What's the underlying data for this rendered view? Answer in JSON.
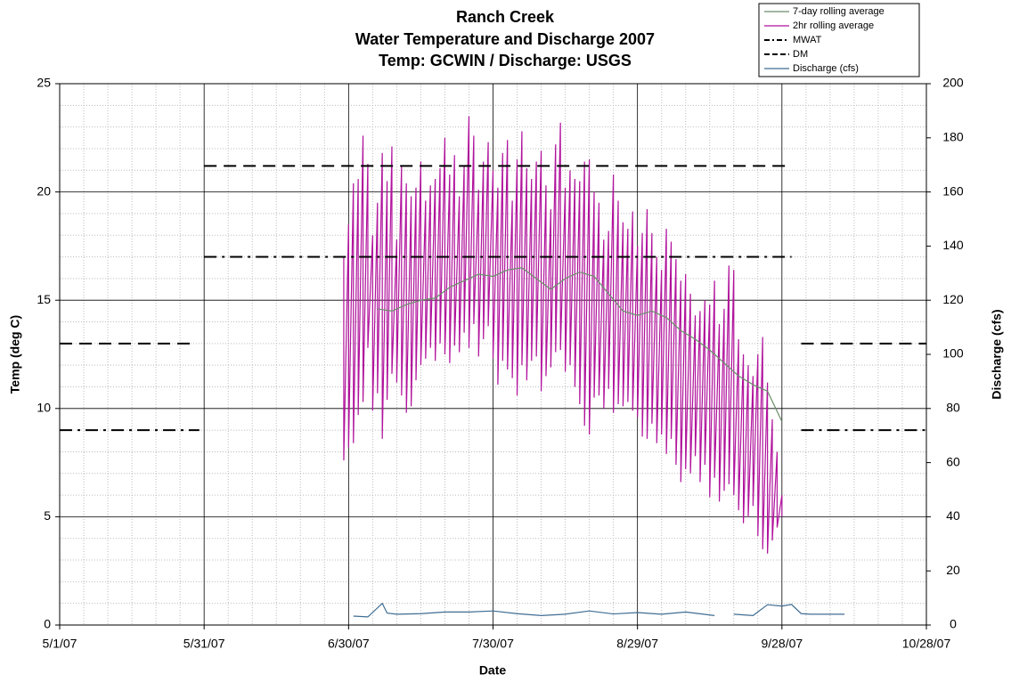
{
  "chart_data": {
    "type": "line",
    "title": [
      "Ranch Creek",
      "Water Temperature and Discharge 2007",
      "Temp: GCWIN / Discharge: USGS"
    ],
    "x_label": "Date",
    "y_label": "Temp (deg C)",
    "y2_label": "Discharge (cfs)",
    "xlim": [
      "5/1/07",
      "10/28/07"
    ],
    "xticks": [
      "5/1/07",
      "5/31/07",
      "6/30/07",
      "7/30/07",
      "8/29/07",
      "9/28/07",
      "10/28/07"
    ],
    "ylim": [
      0,
      25
    ],
    "yticks": [
      0,
      5,
      10,
      15,
      20,
      25
    ],
    "y2lim": [
      0,
      200
    ],
    "y2ticks": [
      0,
      20,
      40,
      60,
      80,
      100,
      120,
      140,
      160,
      180,
      200
    ],
    "grid": true,
    "legend": "top-right",
    "series": [
      {
        "name": "7-day rolling average",
        "color": "#6b8e6b",
        "dash": "solid",
        "x": [
          "7/6/07",
          "7/9/07",
          "7/12/07",
          "7/15/07",
          "7/18/07",
          "7/21/07",
          "7/24/07",
          "7/27/07",
          "7/30/07",
          "8/2/07",
          "8/5/07",
          "8/8/07",
          "8/11/07",
          "8/14/07",
          "8/17/07",
          "8/20/07",
          "8/23/07",
          "8/26/07",
          "8/29/07",
          "9/1/07",
          "9/4/07",
          "9/7/07",
          "9/10/07",
          "9/13/07",
          "9/16/07",
          "9/19/07",
          "9/22/07",
          "9/25/07",
          "9/28/07"
        ],
        "values": [
          14.6,
          14.5,
          14.8,
          15.0,
          15.1,
          15.6,
          15.9,
          16.2,
          16.1,
          16.4,
          16.5,
          16.0,
          15.5,
          16.0,
          16.3,
          16.1,
          15.3,
          14.5,
          14.3,
          14.5,
          14.2,
          13.6,
          13.2,
          12.7,
          12.1,
          11.5,
          11.1,
          10.8,
          9.4
        ]
      },
      {
        "name": "2hr rolling average",
        "color": "#b0129c",
        "dash": "solid",
        "x": [
          "6/29/07",
          "6/30/07",
          "7/1/07",
          "7/2/07",
          "7/3/07",
          "7/4/07",
          "7/5/07",
          "7/6/07",
          "7/7/07",
          "7/8/07",
          "7/9/07",
          "7/10/07",
          "7/11/07",
          "7/12/07",
          "7/13/07",
          "7/14/07",
          "7/15/07",
          "7/16/07",
          "7/17/07",
          "7/18/07",
          "7/19/07",
          "7/20/07",
          "7/21/07",
          "7/22/07",
          "7/23/07",
          "7/24/07",
          "7/25/07",
          "7/26/07",
          "7/27/07",
          "7/28/07",
          "7/29/07",
          "7/30/07",
          "7/31/07",
          "8/1/07",
          "8/2/07",
          "8/3/07",
          "8/4/07",
          "8/5/07",
          "8/6/07",
          "8/7/07",
          "8/8/07",
          "8/9/07",
          "8/10/07",
          "8/11/07",
          "8/12/07",
          "8/13/07",
          "8/14/07",
          "8/15/07",
          "8/16/07",
          "8/17/07",
          "8/18/07",
          "8/19/07",
          "8/20/07",
          "8/21/07",
          "8/22/07",
          "8/23/07",
          "8/24/07",
          "8/25/07",
          "8/26/07",
          "8/27/07",
          "8/28/07",
          "8/29/07",
          "8/30/07",
          "8/31/07",
          "9/1/07",
          "9/2/07",
          "9/3/07",
          "9/4/07",
          "9/5/07",
          "9/6/07",
          "9/7/07",
          "9/8/07",
          "9/9/07",
          "9/10/07",
          "9/11/07",
          "9/12/07",
          "9/13/07",
          "9/14/07",
          "9/15/07",
          "9/16/07",
          "9/17/07",
          "9/18/07",
          "9/19/07",
          "9/20/07",
          "9/21/07",
          "9/22/07",
          "9/23/07",
          "9/24/07",
          "9/25/07",
          "9/26/07",
          "9/27/07",
          "9/28/07"
        ],
        "max": [
          17,
          18.5,
          20.4,
          20.6,
          22.6,
          21.3,
          18,
          19.5,
          21.8,
          20.5,
          22.1,
          17.8,
          21.2,
          20.4,
          19.8,
          20.2,
          21.4,
          19.6,
          20.3,
          20.6,
          21.1,
          22.5,
          20.8,
          21.7,
          19.8,
          21.2,
          23.5,
          22.6,
          20.1,
          21.4,
          22.3,
          21.0,
          20.2,
          21.8,
          22.4,
          19.6,
          21.5,
          22.8,
          21.1,
          20.6,
          21.4,
          21.9,
          20.3,
          19.2,
          22.2,
          23.2,
          20.2,
          21.0,
          20.6,
          20.5,
          21.4,
          21.5,
          20.0,
          19.5,
          17.8,
          18.2,
          20.8,
          19.6,
          18.6,
          18.3,
          19.1,
          17.5,
          18.1,
          19.2,
          18.1,
          17.0,
          16.4,
          18.3,
          17.7,
          16.9,
          15.9,
          16.2,
          15.3,
          14.3,
          14.5,
          15.0,
          14.8,
          15.9,
          13.9,
          14.6,
          16.6,
          16.4,
          13.2,
          12.5,
          12.0,
          11.5,
          12.5,
          13.3,
          11.2,
          9.5,
          8.0,
          6.0
        ],
        "min": [
          7.6,
          8.2,
          8.4,
          9.7,
          10.3,
          12.8,
          9.9,
          10.7,
          8.6,
          10.4,
          11.6,
          11.2,
          10.6,
          9.8,
          10.1,
          11.3,
          12.0,
          12.3,
          12.8,
          12.2,
          13.0,
          12.5,
          12.1,
          12.9,
          12.6,
          13.5,
          12.8,
          13.9,
          12.4,
          13.2,
          13.8,
          12.3,
          11.1,
          12.2,
          11.8,
          11.4,
          10.6,
          12.0,
          11.3,
          12.2,
          12.4,
          10.8,
          11.5,
          11.9,
          12.6,
          12.7,
          11.7,
          12.0,
          11.0,
          10.2,
          9.2,
          8.8,
          10.5,
          10.6,
          10.0,
          10.9,
          9.8,
          10.2,
          10.1,
          10.3,
          9.9,
          9.6,
          8.7,
          8.6,
          9.3,
          8.4,
          8.8,
          7.9,
          8.6,
          7.4,
          6.6,
          7.2,
          7.0,
          7.8,
          6.6,
          7.4,
          5.9,
          6.8,
          5.7,
          6.2,
          6.5,
          6.0,
          5.3,
          4.7,
          5.0,
          5.5,
          4.1,
          3.5,
          3.3,
          3.9,
          4.5,
          5.0
        ]
      },
      {
        "name": "MWAT",
        "color": "#000000",
        "dash": "dashdot",
        "x": [
          "5/1/07",
          "5/30/07",
          "5/31/07",
          "5/31/07",
          "9/30/07",
          "10/1/07",
          "10/2/07",
          "10/28/07"
        ],
        "values": [
          9,
          9,
          null,
          17,
          17,
          null,
          9,
          9
        ]
      },
      {
        "name": "DM",
        "color": "#000000",
        "dash": "dash",
        "x": [
          "5/1/07",
          "5/29/07",
          "5/31/07",
          "5/31/07",
          "9/30/07",
          "10/1/07",
          "10/2/07",
          "10/28/07"
        ],
        "values": [
          13,
          13,
          null,
          21.2,
          21.2,
          null,
          13,
          13
        ]
      },
      {
        "name": "Discharge (cfs)",
        "color": "#3f6d93",
        "dash": "solid",
        "axis": "y2",
        "x": [
          "7/1/07",
          "7/4/07",
          "7/7/07",
          "7/8/07",
          "7/10/07",
          "7/15/07",
          "7/20/07",
          "7/25/07",
          "7/30/07",
          "8/4/07",
          "8/9/07",
          "8/14/07",
          "8/19/07",
          "8/24/07",
          "8/29/07",
          "9/3/07",
          "9/8/07",
          "9/14/07",
          "9/16/07",
          "9/18/07",
          "9/22/07",
          "9/25/07",
          "9/28/07",
          "9/30/07",
          "10/2/07",
          "10/4/07",
          "10/11/07"
        ],
        "values": [
          3.3,
          3.0,
          8.0,
          4.4,
          4.0,
          4.2,
          4.8,
          4.8,
          5.2,
          4.2,
          3.5,
          4.0,
          5.2,
          4.1,
          4.6,
          4.0,
          4.8,
          3.5,
          null,
          4.0,
          3.5,
          7.5,
          7.0,
          7.6,
          4.2,
          4.0,
          4.0
        ]
      }
    ]
  }
}
